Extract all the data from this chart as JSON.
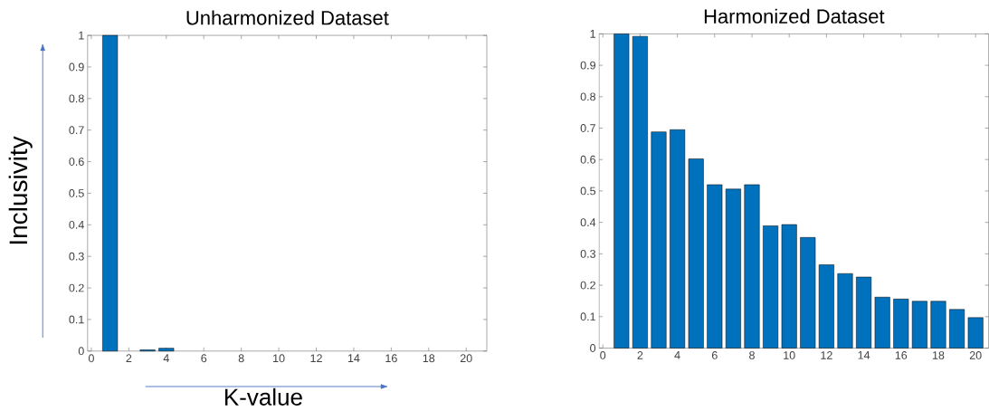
{
  "chart_data": [
    {
      "type": "bar",
      "title": "Unharmonized Dataset",
      "xlabel": "K-value",
      "ylabel": "Inclusivity",
      "x": [
        1,
        3,
        4
      ],
      "values": [
        1,
        0.004,
        0.009
      ],
      "color": "#0072bd",
      "xlim": [
        -0.2,
        21.1
      ],
      "ylim": [
        0,
        1
      ],
      "xticks": [
        0,
        2,
        4,
        6,
        8,
        10,
        12,
        14,
        16,
        18,
        20
      ],
      "yticks": [
        0,
        0.1,
        0.2,
        0.3,
        0.4,
        0.5,
        0.6,
        0.7,
        0.8,
        0.9,
        1
      ]
    },
    {
      "type": "bar",
      "title": "Harmonized Dataset",
      "x": [
        1,
        2,
        3,
        4,
        5,
        6,
        7,
        8,
        9,
        10,
        11,
        12,
        13,
        14,
        15,
        16,
        17,
        18,
        19,
        20
      ],
      "values": [
        1,
        0.992,
        0.688,
        0.695,
        0.602,
        0.52,
        0.506,
        0.52,
        0.389,
        0.393,
        0.352,
        0.265,
        0.237,
        0.226,
        0.162,
        0.156,
        0.149,
        0.149,
        0.123,
        0.097
      ],
      "color": "#0072bd",
      "xlim": [
        -0.2,
        20.7
      ],
      "ylim": [
        0,
        1
      ],
      "xticks": [
        0,
        2,
        4,
        6,
        8,
        10,
        12,
        14,
        16,
        18,
        20
      ],
      "yticks": [
        0,
        0.1,
        0.2,
        0.3,
        0.4,
        0.5,
        0.6,
        0.7,
        0.8,
        0.9,
        1
      ]
    }
  ]
}
